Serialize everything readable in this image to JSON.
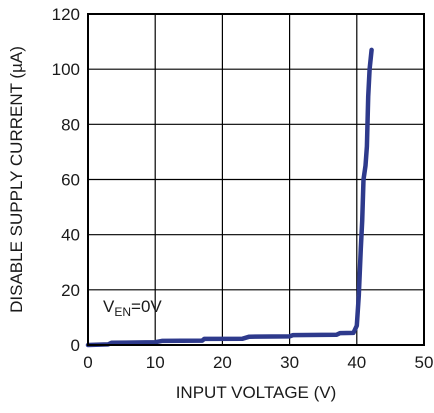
{
  "chart_data": {
    "type": "line",
    "title": "",
    "xlabel": "INPUT VOLTAGE (V)",
    "ylabel": "DISABLE SUPPLY CURRENT (µA)",
    "xlim": [
      0,
      50
    ],
    "ylim": [
      0,
      120
    ],
    "x_ticks": [
      0,
      10,
      20,
      30,
      40,
      50
    ],
    "y_ticks": [
      0,
      20,
      40,
      60,
      80,
      100,
      120
    ],
    "grid": true,
    "annotation": {
      "main": "V",
      "subscript": "EN",
      "suffix": "=0V"
    },
    "colors": {
      "series": "#2e3a8c",
      "grid": "#000000",
      "frame": "#000000"
    },
    "series": [
      {
        "x": [
          0,
          3,
          3.5,
          10,
          11,
          17,
          17.3,
          23,
          24,
          30,
          30.5,
          37,
          37.5,
          39.5,
          40,
          40.3,
          40.6,
          40.8,
          41,
          41.3,
          41.5,
          41.7,
          41.9,
          42.2
        ],
        "y": [
          0,
          0.2,
          0.8,
          1,
          1.5,
          1.6,
          2.2,
          2.3,
          3,
          3.1,
          3.6,
          3.7,
          4.3,
          4.4,
          7,
          18,
          35,
          45,
          60,
          65,
          72,
          90,
          100,
          107
        ]
      }
    ]
  }
}
